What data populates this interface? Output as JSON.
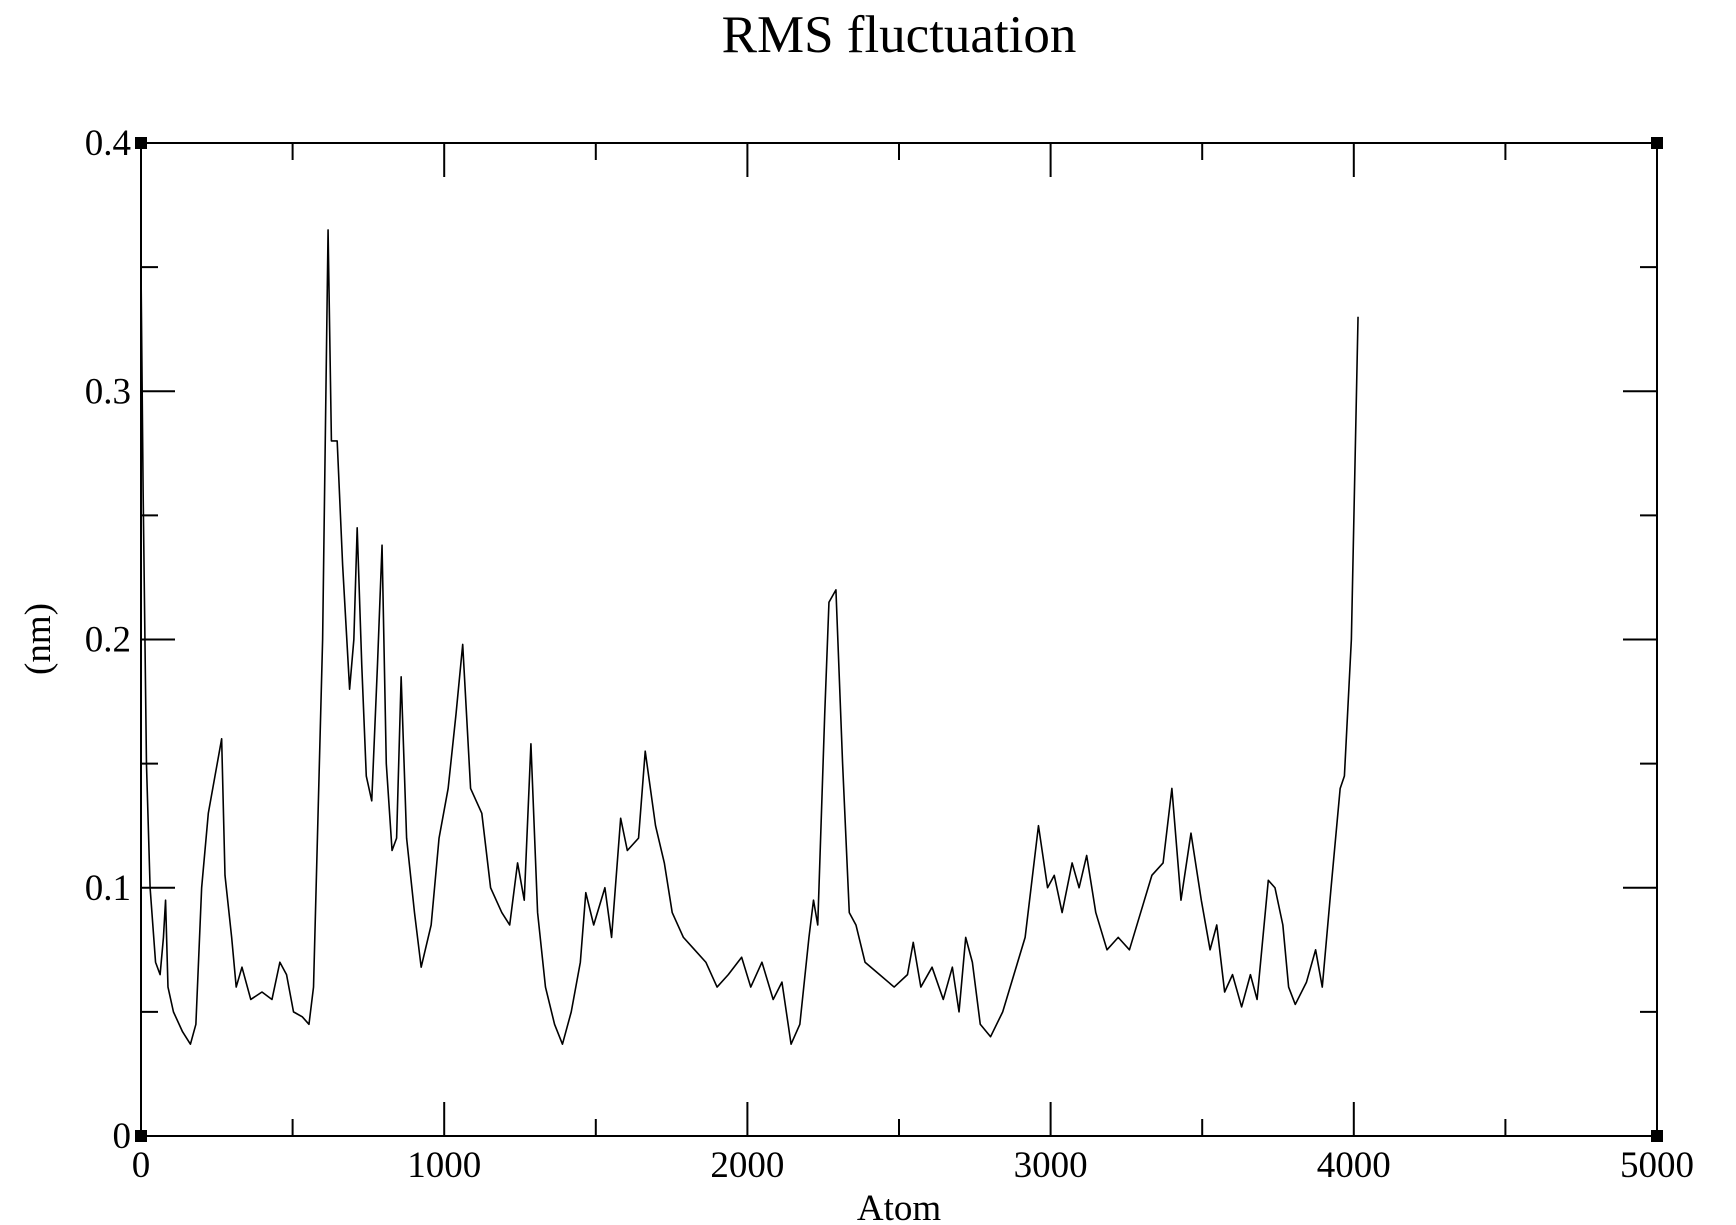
{
  "chart_data": {
    "type": "line",
    "title": "RMS fluctuation",
    "x_label": "Atom",
    "y_label": "(nm)",
    "color": "#000000",
    "xlim": [
      0,
      5000
    ],
    "ylim": [
      0,
      0.4
    ],
    "xticks": [
      0,
      1000,
      2000,
      3000,
      4000,
      5000
    ],
    "yticks": [
      0,
      0.1,
      0.2,
      0.3,
      0.4
    ],
    "x_minor_ticks": [
      500,
      1500,
      2500,
      3500,
      4500
    ],
    "y_minor_ticks": [
      0.05,
      0.15,
      0.25,
      0.35
    ],
    "x": [
      0,
      7,
      18,
      30,
      48,
      63,
      74,
      81,
      89,
      107,
      137,
      163,
      181,
      200,
      222,
      244,
      266,
      277,
      299,
      314,
      333,
      362,
      399,
      432,
      458,
      480,
      503,
      532,
      554,
      569,
      599,
      617,
      628,
      647,
      665,
      688,
      702,
      713,
      728,
      743,
      761,
      780,
      795,
      809,
      828,
      843,
      858,
      876,
      902,
      924,
      957,
      983,
      1013,
      1039,
      1061,
      1087,
      1124,
      1153,
      1190,
      1216,
      1242,
      1264,
      1286,
      1308,
      1334,
      1364,
      1390,
      1419,
      1449,
      1467,
      1493,
      1530,
      1552,
      1582,
      1604,
      1641,
      1663,
      1697,
      1726,
      1752,
      1789,
      1826,
      1863,
      1900,
      1937,
      1981,
      2011,
      2048,
      2085,
      2114,
      2144,
      2173,
      2203,
      2218,
      2232,
      2255,
      2269,
      2292,
      2314,
      2336,
      2358,
      2388,
      2436,
      2484,
      2528,
      2547,
      2572,
      2609,
      2646,
      2676,
      2698,
      2720,
      2742,
      2768,
      2802,
      2842,
      2879,
      2916,
      2960,
      2990,
      3012,
      3038,
      3071,
      3094,
      3119,
      3149,
      3186,
      3223,
      3260,
      3297,
      3334,
      3371,
      3400,
      3430,
      3463,
      3497,
      3526,
      3548,
      3574,
      3600,
      3630,
      3659,
      3681,
      3718,
      3740,
      3766,
      3785,
      3807,
      3844,
      3874,
      3896,
      3925,
      3955,
      3969,
      3992,
      4014
    ],
    "values": [
      0.35,
      0.26,
      0.15,
      0.1,
      0.07,
      0.065,
      0.08,
      0.095,
      0.06,
      0.05,
      0.042,
      0.037,
      0.045,
      0.1,
      0.13,
      0.145,
      0.16,
      0.105,
      0.08,
      0.06,
      0.068,
      0.055,
      0.058,
      0.055,
      0.07,
      0.065,
      0.05,
      0.048,
      0.045,
      0.06,
      0.2,
      0.365,
      0.28,
      0.28,
      0.23,
      0.18,
      0.2,
      0.245,
      0.19,
      0.145,
      0.135,
      0.19,
      0.238,
      0.15,
      0.115,
      0.12,
      0.185,
      0.12,
      0.09,
      0.068,
      0.085,
      0.12,
      0.14,
      0.17,
      0.198,
      0.14,
      0.13,
      0.1,
      0.09,
      0.085,
      0.11,
      0.095,
      0.158,
      0.09,
      0.06,
      0.045,
      0.037,
      0.05,
      0.07,
      0.098,
      0.085,
      0.1,
      0.08,
      0.128,
      0.115,
      0.12,
      0.155,
      0.125,
      0.11,
      0.09,
      0.08,
      0.075,
      0.07,
      0.06,
      0.065,
      0.072,
      0.06,
      0.07,
      0.055,
      0.062,
      0.037,
      0.045,
      0.08,
      0.095,
      0.085,
      0.17,
      0.215,
      0.22,
      0.15,
      0.09,
      0.085,
      0.07,
      0.065,
      0.06,
      0.065,
      0.078,
      0.06,
      0.068,
      0.055,
      0.068,
      0.05,
      0.08,
      0.07,
      0.045,
      0.04,
      0.05,
      0.065,
      0.08,
      0.125,
      0.1,
      0.105,
      0.09,
      0.11,
      0.1,
      0.113,
      0.09,
      0.075,
      0.08,
      0.075,
      0.09,
      0.105,
      0.11,
      0.14,
      0.095,
      0.122,
      0.095,
      0.075,
      0.085,
      0.058,
      0.065,
      0.052,
      0.065,
      0.055,
      0.103,
      0.1,
      0.085,
      0.06,
      0.053,
      0.062,
      0.075,
      0.06,
      0.1,
      0.14,
      0.145,
      0.2,
      0.33
    ]
  }
}
